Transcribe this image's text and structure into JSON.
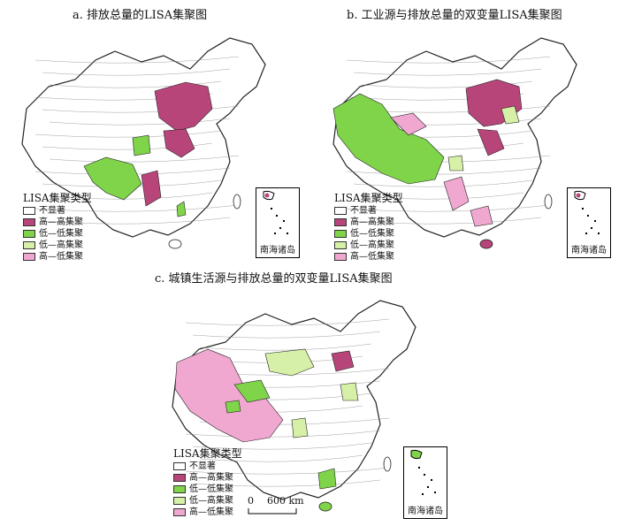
{
  "colors": {
    "not_significant": "#ffffff",
    "high_high": "#b8457a",
    "low_low": "#7fd44a",
    "low_high": "#d7f0a8",
    "high_low": "#f0a8d0"
  },
  "legend": {
    "title": "LISA集聚类型",
    "items": [
      "不显著",
      "高—高集聚",
      "低—低集聚",
      "低—高集聚",
      "高—低集聚"
    ]
  },
  "panels": [
    {
      "id": "a",
      "title": "a. 排放总量的LISA集聚图"
    },
    {
      "id": "b",
      "title": "b. 工业源与排放总量的双变量LISA集聚图"
    },
    {
      "id": "c",
      "title": "c. 城镇生活源与排放总量的双变量LISA集聚图"
    }
  ],
  "inset_label": "南海诸岛",
  "scale_bar": {
    "start": "0",
    "end": "600 km"
  }
}
